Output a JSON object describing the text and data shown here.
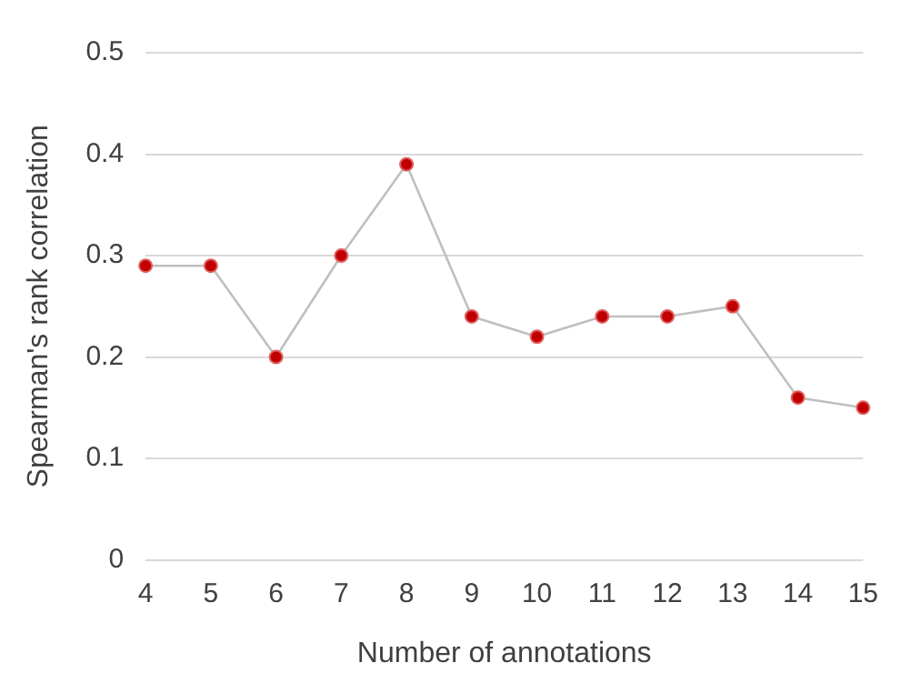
{
  "chart_data": {
    "type": "line",
    "xlabel": "Number of annotations",
    "ylabel": "Spearman's rank correlation",
    "categories": [
      "4",
      "5",
      "6",
      "7",
      "8",
      "9",
      "10",
      "11",
      "12",
      "13",
      "14",
      "15"
    ],
    "series": [
      {
        "color": "#c00000",
        "values": [
          0.29,
          0.29,
          0.2,
          0.3,
          0.39,
          0.24,
          0.22,
          0.24,
          0.24,
          0.25,
          0.16,
          0.15
        ]
      }
    ],
    "ylim": [
      0,
      0.5
    ],
    "yticks": [
      0,
      0.1,
      0.2,
      0.3,
      0.4,
      0.5
    ],
    "grid": "y",
    "legend": false,
    "marker": "circle",
    "line_style": "solid"
  }
}
